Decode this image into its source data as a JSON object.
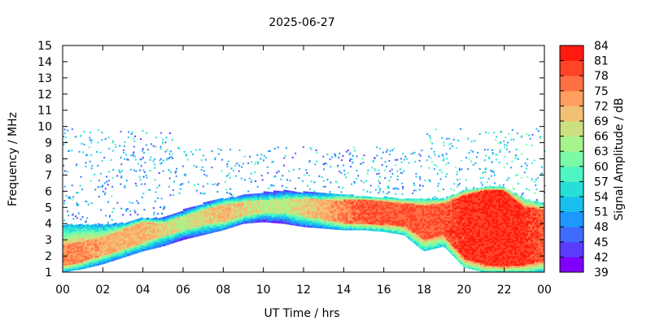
{
  "chart_data": {
    "type": "heatmap",
    "title": "2025-06-27",
    "xlabel": "UT Time / hrs",
    "ylabel": "Frequency / MHz",
    "colorbar_label": "Signal Amplitude / dB",
    "x_ticks": [
      "00",
      "02",
      "04",
      "06",
      "08",
      "10",
      "12",
      "14",
      "16",
      "18",
      "20",
      "22",
      "00"
    ],
    "xlim": [
      0,
      24
    ],
    "y_ticks": [
      "1",
      "2",
      "3",
      "4",
      "5",
      "6",
      "7",
      "8",
      "9",
      "10",
      "11",
      "12",
      "13",
      "14",
      "15"
    ],
    "ylim": [
      1,
      15
    ],
    "colorbar_ticks": [
      "39",
      "42",
      "45",
      "48",
      "51",
      "54",
      "57",
      "60",
      "63",
      "66",
      "69",
      "72",
      "75",
      "78",
      "81",
      "84"
    ],
    "colorbar_range": [
      39,
      84
    ],
    "colorbar_colors": [
      "#7f00ff",
      "#5a3cff",
      "#3f6cff",
      "#1e98ff",
      "#19c0ef",
      "#26dfd6",
      "#4ff5c3",
      "#7cfaa8",
      "#a6f48c",
      "#cce07f",
      "#f2c075",
      "#ffa060",
      "#ff7045",
      "#ff4427",
      "#ff1a10"
    ],
    "grid": false,
    "signal_bands": [
      {
        "t": 0.0,
        "f_low": 1.0,
        "f_high": 3.9,
        "core_low": 1.3,
        "core_high": 2.7,
        "peak": 78
      },
      {
        "t": 1.0,
        "f_low": 1.2,
        "f_high": 3.9,
        "core_low": 1.6,
        "core_high": 2.9,
        "peak": 78
      },
      {
        "t": 2.0,
        "f_low": 1.5,
        "f_high": 3.9,
        "core_low": 2.0,
        "core_high": 3.2,
        "peak": 75
      },
      {
        "t": 3.0,
        "f_low": 1.9,
        "f_high": 4.0,
        "core_low": 2.4,
        "core_high": 3.6,
        "peak": 75
      },
      {
        "t": 4.0,
        "f_low": 2.3,
        "f_high": 4.3,
        "core_low": 2.8,
        "core_high": 4.1,
        "peak": 75
      },
      {
        "t": 5.0,
        "f_low": 2.6,
        "f_high": 4.3,
        "core_low": 3.2,
        "core_high": 4.0,
        "peak": 72
      },
      {
        "t": 6.0,
        "f_low": 3.0,
        "f_high": 4.8,
        "core_low": 3.5,
        "core_high": 4.4,
        "peak": 69
      },
      {
        "t": 7.0,
        "f_low": 3.3,
        "f_high": 5.2,
        "core_low": 3.9,
        "core_high": 4.8,
        "peak": 72
      },
      {
        "t": 8.0,
        "f_low": 3.6,
        "f_high": 5.5,
        "core_low": 4.1,
        "core_high": 5.1,
        "peak": 75
      },
      {
        "t": 9.0,
        "f_low": 4.0,
        "f_high": 5.7,
        "core_low": 4.4,
        "core_high": 5.3,
        "peak": 72
      },
      {
        "t": 10.0,
        "f_low": 4.1,
        "f_high": 5.9,
        "core_low": 4.6,
        "core_high": 5.4,
        "peak": 69
      },
      {
        "t": 11.0,
        "f_low": 4.0,
        "f_high": 6.0,
        "core_low": 4.6,
        "core_high": 5.5,
        "peak": 69
      },
      {
        "t": 12.0,
        "f_low": 3.8,
        "f_high": 5.9,
        "core_low": 4.4,
        "core_high": 5.5,
        "peak": 72
      },
      {
        "t": 13.0,
        "f_low": 3.7,
        "f_high": 5.8,
        "core_low": 4.2,
        "core_high": 5.4,
        "peak": 75
      },
      {
        "t": 14.0,
        "f_low": 3.6,
        "f_high": 5.8,
        "core_low": 4.0,
        "core_high": 5.4,
        "peak": 78
      },
      {
        "t": 15.0,
        "f_low": 3.6,
        "f_high": 5.6,
        "core_low": 4.0,
        "core_high": 5.4,
        "peak": 81
      },
      {
        "t": 16.0,
        "f_low": 3.5,
        "f_high": 5.6,
        "core_low": 3.9,
        "core_high": 5.3,
        "peak": 81
      },
      {
        "t": 17.0,
        "f_low": 3.3,
        "f_high": 5.5,
        "core_low": 3.8,
        "core_high": 5.2,
        "peak": 81
      },
      {
        "t": 18.0,
        "f_low": 2.3,
        "f_high": 5.5,
        "core_low": 3.0,
        "core_high": 5.1,
        "peak": 81
      },
      {
        "t": 19.0,
        "f_low": 2.6,
        "f_high": 5.5,
        "core_low": 3.2,
        "core_high": 5.2,
        "peak": 81
      },
      {
        "t": 20.0,
        "f_low": 1.3,
        "f_high": 6.0,
        "core_low": 1.8,
        "core_high": 5.7,
        "peak": 84
      },
      {
        "t": 21.0,
        "f_low": 1.0,
        "f_high": 6.2,
        "core_low": 1.4,
        "core_high": 6.0,
        "peak": 84
      },
      {
        "t": 22.0,
        "f_low": 1.0,
        "f_high": 6.2,
        "core_low": 1.3,
        "core_high": 6.0,
        "peak": 84
      },
      {
        "t": 23.0,
        "f_low": 1.0,
        "f_high": 5.5,
        "core_low": 1.4,
        "core_high": 5.0,
        "peak": 84
      },
      {
        "t": 24.0,
        "f_low": 1.0,
        "f_high": 5.2,
        "core_low": 1.6,
        "core_high": 4.8,
        "peak": 81
      }
    ],
    "scatter_regions": [
      {
        "t_start": 0.0,
        "t_end": 5.6,
        "f_low": 4.0,
        "f_high": 9.9,
        "level": 51
      },
      {
        "t_start": 5.6,
        "t_end": 18.0,
        "f_low": 5.8,
        "f_high": 8.8,
        "level": 51
      },
      {
        "t_start": 18.0,
        "t_end": 24.0,
        "f_low": 5.5,
        "f_high": 9.9,
        "level": 54
      }
    ]
  }
}
